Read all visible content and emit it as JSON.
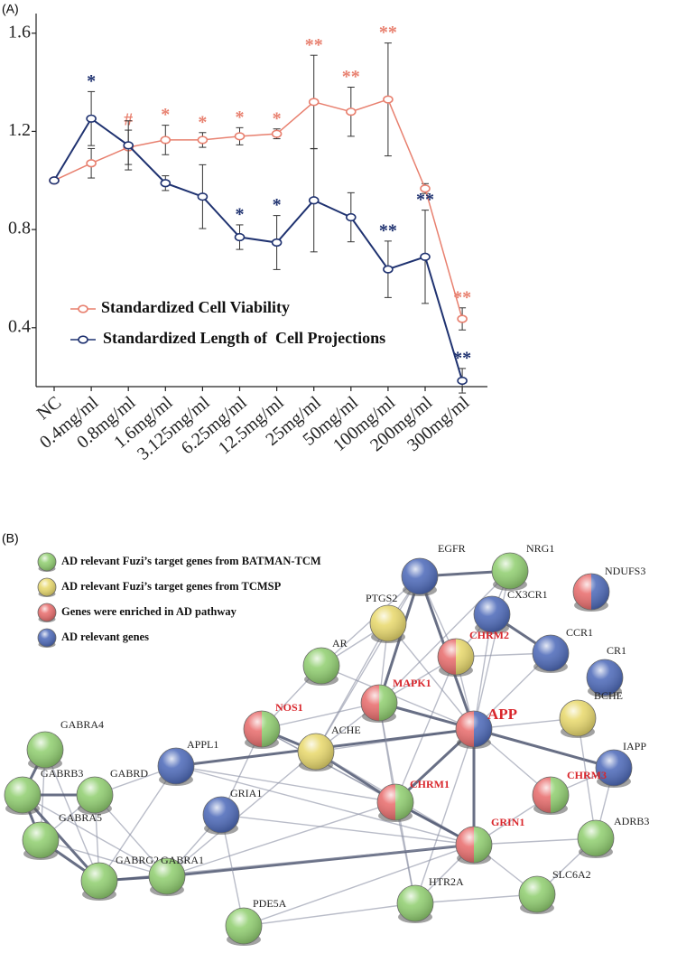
{
  "panel_labels": [
    "(A)",
    "(B)"
  ],
  "chart_data": {
    "type": "line",
    "categories": [
      "NC",
      "0.4mg/ml",
      "0.8mg/ml",
      "1.6mg/ml",
      "3.125mg/ml",
      "6.25mg/ml",
      "12.5mg/ml",
      "25mg/ml",
      "50mg/ml",
      "100mg/ml",
      "200mg/ml",
      "300mg/ml"
    ],
    "ylim": [
      0.16,
      1.68
    ],
    "yticks": [
      0.4,
      0.8,
      1.2,
      1.6
    ],
    "legend": "lower left",
    "series": [
      {
        "name": "Standardized Cell Viability",
        "color": "#e8806f",
        "values": [
          1.0,
          1.07,
          1.135,
          1.165,
          1.165,
          1.18,
          1.19,
          1.32,
          1.28,
          1.33,
          0.967,
          0.436
        ],
        "errors": [
          0,
          0.06,
          0.07,
          0.06,
          0.03,
          0.035,
          0.02,
          0.19,
          0.1,
          0.23,
          0.02,
          0.045
        ],
        "labels": [
          null,
          null,
          "#",
          "*",
          "*",
          "*",
          "*",
          "**",
          "**",
          "**",
          null,
          "**"
        ]
      },
      {
        "name": "Standardized Length of  Cell Projections",
        "color": "#1f3270",
        "values": [
          1.0,
          1.252,
          1.143,
          0.989,
          0.934,
          0.769,
          0.747,
          0.919,
          0.85,
          0.638,
          0.689,
          0.184
        ],
        "errors": [
          0,
          0.11,
          0.1,
          0.03,
          0.13,
          0.05,
          0.11,
          0.21,
          0.1,
          0.115,
          0.19,
          0.05
        ],
        "labels": [
          null,
          "*",
          null,
          null,
          null,
          "*",
          "*",
          null,
          null,
          "**",
          "**",
          "**"
        ]
      }
    ]
  },
  "network": {
    "legend": [
      {
        "label": "AD relevant Fuzi’s target genes  from BATMAN-TCM",
        "fill": [
          "#8fce6e"
        ]
      },
      {
        "label": "AD relevant Fuzi’s target genes from TCMSP",
        "fill": [
          "#e8d86a"
        ]
      },
      {
        "label": "Genes were enriched  in AD pathway",
        "fill": [
          "#e86a6a"
        ]
      },
      {
        "label": "AD relevant genes",
        "fill": [
          "#4a67b8"
        ]
      }
    ],
    "nodes": [
      {
        "label": "EGFR",
        "fill": [
          "#4a67b8"
        ],
        "label_color": "#222222"
      },
      {
        "label": "NRG1",
        "fill": [
          "#8fce6e"
        ],
        "label_color": "#222222"
      },
      {
        "label": "NDUFS3",
        "fill": [
          "#e86a6a",
          "#4a67b8"
        ],
        "label_color": "#222222"
      },
      {
        "label": "PTGS2",
        "fill": [
          "#e8d86a"
        ],
        "label_color": "#222222"
      },
      {
        "label": "CX3CR1",
        "fill": [
          "#4a67b8"
        ],
        "label_color": "#222222"
      },
      {
        "label": "CHRM2",
        "fill": [
          "#e86a6a",
          "#e8d86a"
        ],
        "label_color": "#d9262c"
      },
      {
        "label": "CCR1",
        "fill": [
          "#4a67b8"
        ],
        "label_color": "#222222"
      },
      {
        "label": "CR1",
        "fill": [
          "#4a67b8"
        ],
        "label_color": "#222222"
      },
      {
        "label": "AR",
        "fill": [
          "#8fce6e"
        ],
        "label_color": "#222222"
      },
      {
        "label": "MAPK1",
        "fill": [
          "#e86a6a",
          "#8fce6e"
        ],
        "label_color": "#d9262c"
      },
      {
        "label": "BCHE",
        "fill": [
          "#e8d86a"
        ],
        "label_color": "#222222"
      },
      {
        "label": "NOS1",
        "fill": [
          "#e86a6a",
          "#8fce6e"
        ],
        "label_color": "#d9262c"
      },
      {
        "label": "ACHE",
        "fill": [
          "#e8d86a"
        ],
        "label_color": "#222222"
      },
      {
        "label": "APP",
        "fill": [
          "#e86a6a",
          "#4a67b8"
        ],
        "label_color": "#d9262c"
      },
      {
        "label": "APPL1",
        "fill": [
          "#4a67b8"
        ],
        "label_color": "#222222"
      },
      {
        "label": "IAPP",
        "fill": [
          "#4a67b8"
        ],
        "label_color": "#222222"
      },
      {
        "label": "GRIA1",
        "fill": [
          "#4a67b8"
        ],
        "label_color": "#222222"
      },
      {
        "label": "CHRM1",
        "fill": [
          "#e86a6a",
          "#8fce6e"
        ],
        "label_color": "#d9262c"
      },
      {
        "label": "CHRM3",
        "fill": [
          "#e86a6a",
          "#8fce6e"
        ],
        "label_color": "#d9262c"
      },
      {
        "label": "GRIN1",
        "fill": [
          "#e86a6a",
          "#8fce6e"
        ],
        "label_color": "#d9262c"
      },
      {
        "label": "ADRB3",
        "fill": [
          "#8fce6e"
        ],
        "label_color": "#222222"
      },
      {
        "label": "SLC6A2",
        "fill": [
          "#8fce6e"
        ],
        "label_color": "#222222"
      },
      {
        "label": "HTR2A",
        "fill": [
          "#8fce6e"
        ],
        "label_color": "#222222"
      },
      {
        "label": "PDE5A",
        "fill": [
          "#8fce6e"
        ],
        "label_color": "#222222"
      },
      {
        "label": "GABRA4",
        "fill": [
          "#8fce6e"
        ],
        "label_color": "#222222"
      },
      {
        "label": "GABRB3",
        "fill": [
          "#8fce6e"
        ],
        "label_color": "#222222"
      },
      {
        "label": "GABRD",
        "fill": [
          "#8fce6e"
        ],
        "label_color": "#222222"
      },
      {
        "label": "GABRA5",
        "fill": [
          "#8fce6e"
        ],
        "label_color": "#222222"
      },
      {
        "label": "GABRG2",
        "fill": [
          "#8fce6e"
        ],
        "label_color": "#222222"
      },
      {
        "label": "GABRA1",
        "fill": [
          "#8fce6e"
        ],
        "label_color": "#222222"
      }
    ]
  }
}
